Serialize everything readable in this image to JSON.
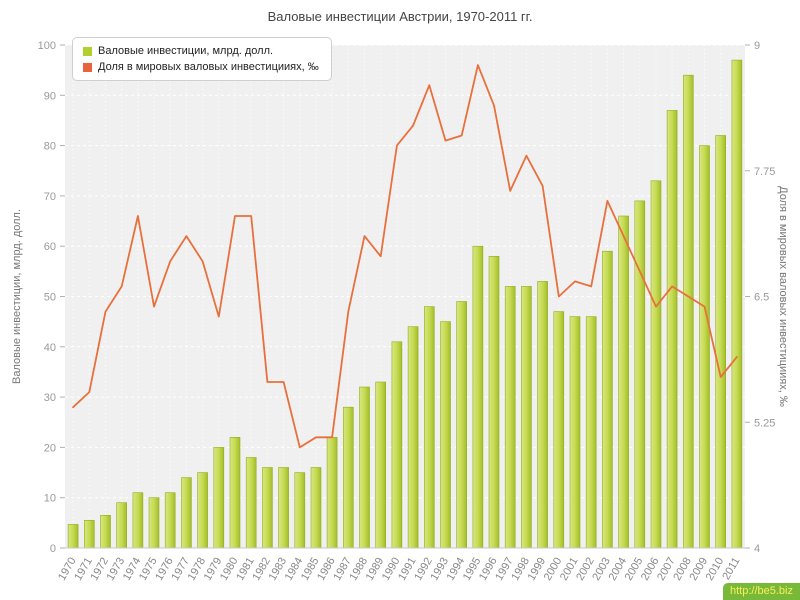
{
  "title": "Валовые инвестиции Австрии, 1970-2011 гг.",
  "watermark": "http://be5.biz",
  "legend": [
    {
      "label": "Валовые инвестиции, млрд. долл.",
      "color": "#b1cf2f"
    },
    {
      "label": "Доля в мировых валовых инвестицииях, ‰",
      "color": "#e8643c"
    }
  ],
  "chart_data": {
    "type": "bar+line",
    "title": "Валовые инвестиции Австрии, 1970-2011 гг.",
    "categories": [
      "1970",
      "1971",
      "1972",
      "1973",
      "1974",
      "1975",
      "1976",
      "1977",
      "1978",
      "1979",
      "1980",
      "1981",
      "1982",
      "1983",
      "1984",
      "1985",
      "1986",
      "1987",
      "1988",
      "1989",
      "1990",
      "1991",
      "1992",
      "1993",
      "1994",
      "1995",
      "1996",
      "1997",
      "1998",
      "1999",
      "2000",
      "2001",
      "2002",
      "2003",
      "2004",
      "2005",
      "2006",
      "2007",
      "2008",
      "2009",
      "2010",
      "2011"
    ],
    "series": [
      {
        "name": "Валовые инвестиции, млрд. долл.",
        "type": "bar",
        "axis": "left",
        "color": "#c6db52",
        "values": [
          4.7,
          5.5,
          6.5,
          9,
          11,
          10,
          11,
          14,
          15,
          20,
          22,
          18,
          16,
          16,
          15,
          16,
          22,
          28,
          32,
          33,
          41,
          44,
          48,
          45,
          49,
          60,
          58,
          52,
          52,
          53,
          47,
          46,
          46,
          59,
          66,
          69,
          73,
          87,
          94,
          80,
          82,
          97
        ]
      },
      {
        "name": "Доля в мировых валовых инвестицииях, ‰",
        "type": "line",
        "axis": "right",
        "color": "#e8703d",
        "values": [
          5.4,
          5.55,
          6.35,
          6.6,
          7.3,
          6.4,
          6.85,
          7.1,
          6.85,
          6.3,
          7.3,
          7.3,
          5.65,
          5.65,
          5.0,
          5.1,
          5.1,
          6.35,
          7.1,
          6.9,
          8.0,
          8.2,
          8.6,
          8.05,
          8.1,
          8.8,
          8.4,
          7.55,
          7.9,
          7.6,
          6.5,
          6.65,
          6.6,
          7.45,
          7.1,
          6.75,
          6.4,
          6.6,
          6.5,
          6.4,
          5.7,
          5.9
        ]
      }
    ],
    "left_axis": {
      "label": "Валовые инвестиции, млрд. долл.",
      "min": 0,
      "max": 100,
      "ticks": [
        0,
        10,
        20,
        30,
        40,
        50,
        60,
        70,
        80,
        90,
        100
      ]
    },
    "right_axis": {
      "label": "Доля в мировых валовых инвестицииях, ‰",
      "min": 4,
      "max": 9,
      "ticks": [
        4,
        5.25,
        6.5,
        7.75,
        9
      ]
    },
    "grid": true,
    "legend_position": "top-left-inside",
    "plot_background": "#f0f0f0"
  }
}
